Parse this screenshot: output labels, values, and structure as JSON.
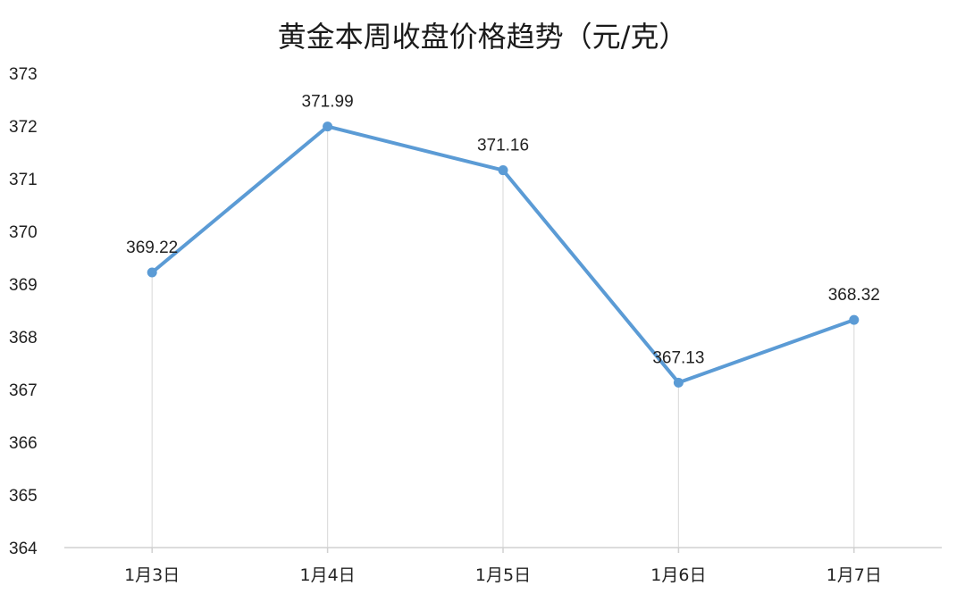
{
  "chart_data": {
    "type": "line",
    "title": "黄金本周收盘价格趋势（元/克）",
    "xlabel": "",
    "ylabel": "",
    "categories": [
      "1月3日",
      "1月4日",
      "1月5日",
      "1月6日",
      "1月7日"
    ],
    "series": [
      {
        "values": [
          369.22,
          371.99,
          371.16,
          367.13,
          368.32
        ],
        "labels": [
          "369.22",
          "371.99",
          "371.16",
          "367.13",
          "368.32"
        ],
        "color": "#5b9bd5"
      }
    ],
    "ylim": [
      364,
      373
    ],
    "yticks": [
      "364",
      "365",
      "366",
      "367",
      "368",
      "369",
      "370",
      "371",
      "372",
      "373"
    ],
    "drop_lines": true,
    "grid": false,
    "legend": "none"
  }
}
